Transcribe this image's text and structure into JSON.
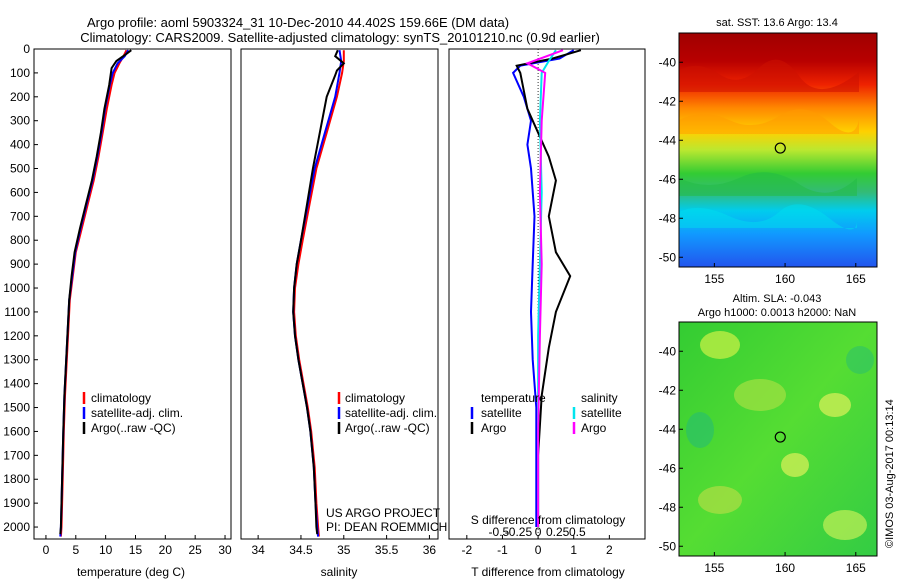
{
  "title_line1": "Argo profile: aoml 5903324_31 10-Dec-2010 44.402S 159.66E (DM data)",
  "title_line2": "Climatology: CARS2009. Satellite-adjusted climatology: synTS_20101210.nc (0.9d earlier)",
  "credit": "©IMOS 03-Aug-2017 00:13:14",
  "colors": {
    "climatology": "#ff0000",
    "satellite": "#0000ff",
    "argo": "#000000",
    "sal_satellite": "#00e5ee",
    "sal_argo": "#ff00ff"
  },
  "chart_data": [
    {
      "type": "line",
      "name": "temperature-panel",
      "xlabel": "temperature (deg C)",
      "ylabel": "",
      "xlim": [
        -2,
        31
      ],
      "ylim": [
        2050,
        0
      ],
      "xticks": [
        "0",
        "5",
        "10",
        "15",
        "20",
        "25",
        "30"
      ],
      "yticks": [
        "0",
        "100",
        "200",
        "300",
        "400",
        "500",
        "600",
        "700",
        "800",
        "900",
        "1000",
        "1100",
        "1200",
        "1300",
        "1400",
        "1500",
        "1600",
        "1700",
        "1800",
        "1900",
        "2000"
      ],
      "legend": [
        "climatology",
        "satellite-adj. clim.",
        "Argo(..raw -QC)"
      ],
      "series": [
        {
          "name": "climatology",
          "color": "#ff0000",
          "points": [
            [
              13.5,
              5
            ],
            [
              13,
              30
            ],
            [
              12.3,
              60
            ],
            [
              11.5,
              100
            ],
            [
              11,
              150
            ],
            [
              10.2,
              250
            ],
            [
              9.5,
              350
            ],
            [
              8.8,
              450
            ],
            [
              8,
              550
            ],
            [
              7,
              650
            ],
            [
              6,
              750
            ],
            [
              5,
              850
            ],
            [
              4.5,
              950
            ],
            [
              4,
              1050
            ],
            [
              3.8,
              1150
            ],
            [
              3.6,
              1250
            ],
            [
              3.4,
              1350
            ],
            [
              3.2,
              1450
            ],
            [
              3.0,
              1600
            ],
            [
              2.8,
              1800
            ],
            [
              2.7,
              1900
            ],
            [
              2.6,
              2000
            ],
            [
              2.5,
              2040
            ]
          ]
        },
        {
          "name": "satellite",
          "color": "#0000ff",
          "points": [
            [
              13.8,
              5
            ],
            [
              13.2,
              30
            ],
            [
              12,
              60
            ],
            [
              11.2,
              100
            ],
            [
              10.7,
              150
            ],
            [
              9.9,
              250
            ],
            [
              9.3,
              350
            ],
            [
              8.6,
              450
            ],
            [
              7.8,
              550
            ],
            [
              6.8,
              650
            ],
            [
              5.8,
              750
            ],
            [
              4.9,
              850
            ],
            [
              4.4,
              950
            ],
            [
              3.9,
              1050
            ],
            [
              3.7,
              1150
            ],
            [
              3.5,
              1250
            ],
            [
              3.3,
              1350
            ],
            [
              3.1,
              1450
            ],
            [
              2.9,
              1600
            ],
            [
              2.7,
              1800
            ],
            [
              2.6,
              1900
            ],
            [
              2.5,
              2000
            ],
            [
              2.4,
              2040
            ]
          ]
        },
        {
          "name": "argo",
          "color": "#000000",
          "points": [
            [
              14.3,
              5
            ],
            [
              13.5,
              20
            ],
            [
              11.8,
              50
            ],
            [
              11,
              80
            ],
            [
              10.6,
              150
            ],
            [
              9.8,
              250
            ],
            [
              9.2,
              350
            ],
            [
              8.5,
              450
            ],
            [
              7.7,
              550
            ],
            [
              6.7,
              650
            ],
            [
              5.7,
              750
            ],
            [
              4.8,
              850
            ],
            [
              4.3,
              950
            ],
            [
              3.9,
              1050
            ],
            [
              3.7,
              1150
            ],
            [
              3.5,
              1250
            ],
            [
              3.3,
              1350
            ],
            [
              3.1,
              1450
            ],
            [
              2.9,
              1600
            ],
            [
              2.7,
              1800
            ],
            [
              2.6,
              1900
            ],
            [
              2.5,
              2000
            ],
            [
              2.4,
              2030
            ]
          ]
        }
      ]
    },
    {
      "type": "line",
      "name": "salinity-panel",
      "xlabel": "salinity",
      "ylabel": "",
      "xlim": [
        33.8,
        36.1
      ],
      "ylim": [
        2050,
        0
      ],
      "xticks": [
        "34",
        "34.5",
        "35",
        "35.5",
        "36"
      ],
      "legend": [
        "climatology",
        "satellite-adj. clim.",
        "Argo(..raw -QC)"
      ],
      "annotation": [
        "US ARGO PROJECT",
        "PI: DEAN ROEMMICH"
      ],
      "series": [
        {
          "name": "climatology",
          "color": "#ff0000",
          "points": [
            [
              35.0,
              5
            ],
            [
              35.0,
              50
            ],
            [
              34.98,
              100
            ],
            [
              34.92,
              200
            ],
            [
              34.8,
              350
            ],
            [
              34.68,
              500
            ],
            [
              34.6,
              650
            ],
            [
              34.52,
              800
            ],
            [
              34.47,
              900
            ],
            [
              34.43,
              1000
            ],
            [
              34.42,
              1100
            ],
            [
              34.44,
              1200
            ],
            [
              34.48,
              1300
            ],
            [
              34.53,
              1400
            ],
            [
              34.58,
              1500
            ],
            [
              34.62,
              1600
            ],
            [
              34.66,
              1750
            ],
            [
              34.68,
              1900
            ],
            [
              34.7,
              2000
            ],
            [
              34.71,
              2040
            ]
          ]
        },
        {
          "name": "satellite",
          "color": "#0000ff",
          "points": [
            [
              34.95,
              5
            ],
            [
              34.97,
              50
            ],
            [
              34.95,
              100
            ],
            [
              34.9,
              200
            ],
            [
              34.78,
              350
            ],
            [
              34.66,
              500
            ],
            [
              34.58,
              650
            ],
            [
              34.5,
              800
            ],
            [
              34.45,
              900
            ],
            [
              34.42,
              1000
            ],
            [
              34.41,
              1100
            ],
            [
              34.43,
              1200
            ],
            [
              34.47,
              1300
            ],
            [
              34.52,
              1400
            ],
            [
              34.57,
              1500
            ],
            [
              34.61,
              1600
            ],
            [
              34.65,
              1750
            ],
            [
              34.67,
              1900
            ],
            [
              34.69,
              2000
            ],
            [
              34.7,
              2040
            ]
          ]
        },
        {
          "name": "argo",
          "color": "#000000",
          "points": [
            [
              34.93,
              5
            ],
            [
              34.9,
              30
            ],
            [
              35.0,
              60
            ],
            [
              34.92,
              90
            ],
            [
              34.9,
              110
            ],
            [
              34.8,
              200
            ],
            [
              34.72,
              350
            ],
            [
              34.64,
              500
            ],
            [
              34.57,
              650
            ],
            [
              34.5,
              800
            ],
            [
              34.45,
              900
            ],
            [
              34.42,
              1000
            ],
            [
              34.41,
              1100
            ],
            [
              34.43,
              1200
            ],
            [
              34.47,
              1300
            ],
            [
              34.52,
              1400
            ],
            [
              34.57,
              1500
            ],
            [
              34.61,
              1600
            ],
            [
              34.65,
              1750
            ],
            [
              34.67,
              1900
            ],
            [
              34.68,
              2000
            ],
            [
              34.69,
              2030
            ]
          ]
        }
      ]
    },
    {
      "type": "line",
      "name": "difference-panel",
      "xlabel": "T difference from climatology",
      "xlabel2": "S difference from climatology",
      "xlim": [
        -2.5,
        3
      ],
      "ylim": [
        2050,
        0
      ],
      "xticks": [
        "-2",
        "-1",
        "0",
        "1",
        "2"
      ],
      "xticks_s": [
        "-0.5",
        "-0.25",
        "0",
        "0.25",
        "0.5"
      ],
      "legend_temperature": {
        "title": "temperature",
        "items": [
          "satellite",
          "Argo"
        ]
      },
      "legend_salinity": {
        "title": "salinity",
        "items": [
          "satellite",
          "Argo"
        ]
      },
      "series": [
        {
          "name": "temp-satellite",
          "color": "#0000ff",
          "points": [
            [
              1,
              5
            ],
            [
              0.6,
              40
            ],
            [
              -0.5,
              70
            ],
            [
              -0.7,
              100
            ],
            [
              -0.4,
              200
            ],
            [
              -0.2,
              300
            ],
            [
              -0.3,
              400
            ],
            [
              -0.2,
              500
            ],
            [
              -0.1,
              700
            ],
            [
              -0.15,
              900
            ],
            [
              -0.2,
              1100
            ],
            [
              -0.15,
              1300
            ],
            [
              -0.05,
              1500
            ],
            [
              -0.05,
              2000
            ]
          ]
        },
        {
          "name": "temp-argo",
          "color": "#000000",
          "points": [
            [
              1.2,
              5
            ],
            [
              0.4,
              40
            ],
            [
              -0.6,
              70
            ],
            [
              -0.5,
              100
            ],
            [
              -0.3,
              250
            ],
            [
              0.3,
              450
            ],
            [
              0.5,
              550
            ],
            [
              0.3,
              700
            ],
            [
              0.5,
              850
            ],
            [
              0.9,
              950
            ],
            [
              0.5,
              1100
            ],
            [
              0.3,
              1250
            ],
            [
              0.1,
              1450
            ],
            [
              0.0,
              1700
            ],
            [
              0.0,
              2000
            ]
          ]
        },
        {
          "name": "sal-satellite",
          "color": "#00e5ee",
          "points": [
            [
              0.5,
              5
            ],
            [
              0.3,
              50
            ],
            [
              0.1,
              100
            ],
            [
              0.05,
              300
            ],
            [
              0.1,
              600
            ],
            [
              0.05,
              900
            ],
            [
              0.0,
              1200
            ],
            [
              0.0,
              1600
            ],
            [
              0.0,
              2000
            ]
          ]
        },
        {
          "name": "sal-argo",
          "color": "#ff00ff",
          "points": [
            [
              0.7,
              5
            ],
            [
              -0.3,
              60
            ],
            [
              0.2,
              100
            ],
            [
              0.1,
              300
            ],
            [
              0.05,
              600
            ],
            [
              0.1,
              900
            ],
            [
              0.05,
              1200
            ],
            [
              0.0,
              1600
            ],
            [
              0.0,
              2000
            ]
          ]
        }
      ]
    },
    {
      "type": "heatmap",
      "name": "sst-map",
      "title": "sat. SST: 13.6  Argo: 13.4",
      "xlim": [
        152.5,
        166.5
      ],
      "ylim": [
        -50.5,
        -38.5
      ],
      "xticks": [
        "155",
        "160",
        "165"
      ],
      "yticks": [
        "-40",
        "-42",
        "-44",
        "-46",
        "-48",
        "-50"
      ],
      "marker": {
        "lon": 159.66,
        "lat": -44.4
      }
    },
    {
      "type": "heatmap",
      "name": "sla-map",
      "title_line1": "Altim. SLA: -0.043",
      "title_line2": "Argo h1000: 0.0013 h2000: NaN",
      "xlim": [
        152.5,
        166.5
      ],
      "ylim": [
        -50.5,
        -38.5
      ],
      "xticks": [
        "155",
        "160",
        "165"
      ],
      "yticks": [
        "-40",
        "-42",
        "-44",
        "-46",
        "-48",
        "-50"
      ],
      "marker": {
        "lon": 159.66,
        "lat": -44.4
      }
    }
  ]
}
